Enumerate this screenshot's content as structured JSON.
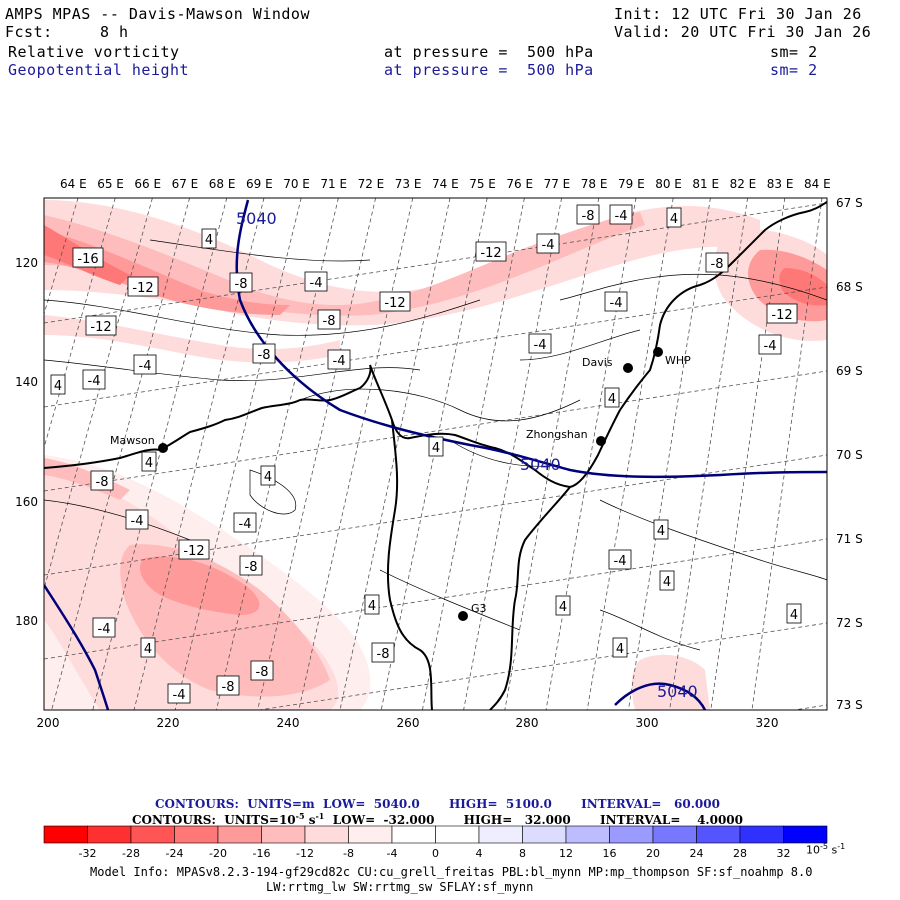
{
  "header": {
    "title": "AMPS MPAS -- Davis-Mawson Window",
    "fcst_label": "Fcst:",
    "fcst_value": "8 h",
    "init": "Init: 12 UTC Fri 30 Jan 26",
    "valid": "Valid: 20 UTC Fri 30 Jan 26",
    "field1": {
      "name": "Relative vorticity",
      "pressure": "at pressure =  500 hPa",
      "sm": "sm= 2"
    },
    "field2": {
      "name": "Geopotential height",
      "pressure": "at pressure =  500 hPa",
      "sm": "sm= 2"
    }
  },
  "map": {
    "lon_labels": [
      "64 E",
      "65 E",
      "66 E",
      "67 E",
      "68 E",
      "69 E",
      "70 E",
      "71 E",
      "72 E",
      "73 E",
      "74 E",
      "75 E",
      "76 E",
      "77 E",
      "78 E",
      "79 E",
      "80 E",
      "81 E",
      "82 E",
      "83 E",
      "84 E"
    ],
    "lat_labels_right": [
      "67 S",
      "68 S",
      "69 S",
      "70 S",
      "71 S",
      "72 S",
      "73 S"
    ],
    "y_ticks": [
      "120",
      "140",
      "160",
      "180"
    ],
    "x_ticks": [
      "200",
      "220",
      "240",
      "260",
      "280",
      "300",
      "320"
    ],
    "stations": [
      {
        "name": "Mawson"
      },
      {
        "name": "Davis"
      },
      {
        "name": "WHP"
      },
      {
        "name": "Zhongshan"
      },
      {
        "name": "G3"
      }
    ],
    "height_labels": [
      "5040",
      "5040",
      "5040"
    ],
    "vort_labels": [
      "-16",
      "-12",
      "-12",
      "-12",
      "-12",
      "-12",
      "-12",
      "-8",
      "-8",
      "-8",
      "-8",
      "-8",
      "-8",
      "-8",
      "-8",
      "-8",
      "-8",
      "-4",
      "-4",
      "-4",
      "-4",
      "-4",
      "-4",
      "-4",
      "-4",
      "-4",
      "-4",
      "-4",
      "-4",
      "-4",
      "-4",
      "4",
      "4",
      "4",
      "4",
      "4",
      "4",
      "4",
      "4",
      "4",
      "4",
      "4",
      "4",
      "4",
      "4"
    ]
  },
  "contour_info": {
    "line1": {
      "contours": "CONTOURS:",
      "units": "UNITS=m",
      "low": "LOW=  5040.0",
      "high": "HIGH=  5100.0",
      "interval": "INTERVAL=   60.000"
    },
    "line2": {
      "contours": "CONTOURS:",
      "units": "UNITS=10",
      "units_exp": "-5",
      "units_tail": " s",
      "units_tail_exp": "-1",
      "low": "LOW=  -32.000",
      "high": "HIGH=   32.000",
      "interval": "INTERVAL=    4.0000"
    }
  },
  "colorbar": {
    "labels": [
      "-32",
      "-28",
      "-24",
      "-20",
      "-16",
      "-12",
      "-8",
      "-4",
      "0",
      "4",
      "8",
      "12",
      "16",
      "20",
      "24",
      "28",
      "32"
    ],
    "units": "10",
    "units_exp": "-5",
    "units_s": "s",
    "units_s_exp": "-1",
    "colors": [
      "#ff0000",
      "#ff3030",
      "#ff5555",
      "#ff7878",
      "#ff9a9a",
      "#ffbcbc",
      "#ffdcdc",
      "#ffeeee",
      "#ffffff",
      "#ffffff",
      "#eeeeff",
      "#bcbcff",
      "#9a9aff",
      "#7878ff",
      "#5555ff",
      "#3030ff",
      "#0000ff"
    ]
  },
  "model_info": {
    "line1": "Model Info: MPASv8.2.3-194-gf29cd82c CU:cu_grell_freitas PBL:bl_mynn MP:mp_thompson SF:sf_noahmp 8.0",
    "line2": "LW:rrtmg_lw SW:rrtmg_sw SFLAY:sf_mynn"
  }
}
